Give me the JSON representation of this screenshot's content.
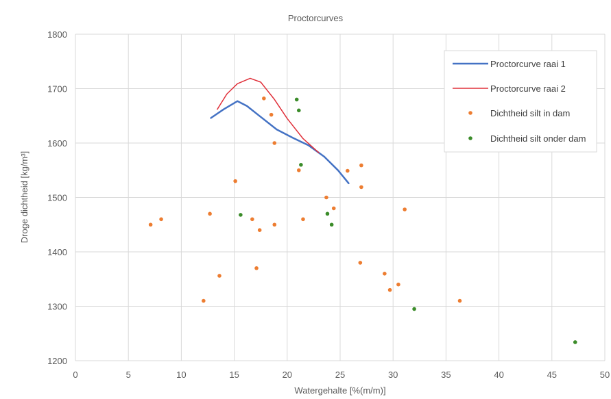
{
  "chart_data": {
    "type": "scatter",
    "title": "Proctorcurves",
    "xlabel": "Watergehalte [%(m/m)]",
    "ylabel": "Droge dichtheid  [kg/m³]",
    "xlim": [
      0,
      50
    ],
    "ylim": [
      1200,
      1800
    ],
    "xticks": [
      0,
      5,
      10,
      15,
      20,
      25,
      30,
      35,
      40,
      45,
      50
    ],
    "yticks": [
      1200,
      1300,
      1400,
      1500,
      1600,
      1700,
      1800
    ],
    "grid": true,
    "legend_position": "top-right",
    "series": [
      {
        "name": "Proctorcurve raai 1",
        "kind": "line",
        "color": "#4472C4",
        "points": [
          [
            12.8,
            1646
          ],
          [
            14.0,
            1662
          ],
          [
            15.3,
            1677
          ],
          [
            16.2,
            1668
          ],
          [
            17.5,
            1648
          ],
          [
            19.0,
            1625
          ],
          [
            20.5,
            1610
          ],
          [
            22.0,
            1596
          ],
          [
            23.5,
            1575
          ],
          [
            24.8,
            1550
          ],
          [
            25.8,
            1526
          ]
        ]
      },
      {
        "name": "Proctorcurve raai 2",
        "kind": "line",
        "color": "#E0303A",
        "points": [
          [
            13.4,
            1662
          ],
          [
            14.3,
            1690
          ],
          [
            15.3,
            1709
          ],
          [
            16.5,
            1719
          ],
          [
            17.5,
            1712
          ],
          [
            18.8,
            1680
          ],
          [
            20.0,
            1645
          ],
          [
            21.5,
            1608
          ],
          [
            23.0,
            1582
          ]
        ]
      },
      {
        "name": "Dichtheid silt in dam",
        "kind": "scatter",
        "color": "#ED7D31",
        "points": [
          [
            7.1,
            1450
          ],
          [
            8.1,
            1460
          ],
          [
            12.1,
            1310
          ],
          [
            12.7,
            1470
          ],
          [
            13.6,
            1356
          ],
          [
            15.1,
            1530
          ],
          [
            16.7,
            1460
          ],
          [
            17.1,
            1370
          ],
          [
            17.4,
            1440
          ],
          [
            17.8,
            1682
          ],
          [
            18.5,
            1652
          ],
          [
            18.8,
            1600
          ],
          [
            18.8,
            1450
          ],
          [
            21.1,
            1550
          ],
          [
            21.5,
            1460
          ],
          [
            23.7,
            1500
          ],
          [
            24.4,
            1480
          ],
          [
            25.7,
            1549
          ],
          [
            26.9,
            1380
          ],
          [
            27.0,
            1519
          ],
          [
            27.0,
            1559
          ],
          [
            29.2,
            1360
          ],
          [
            29.7,
            1330
          ],
          [
            30.5,
            1340
          ],
          [
            31.1,
            1478
          ],
          [
            36.3,
            1310
          ]
        ]
      },
      {
        "name": "Dichtheid silt onder dam",
        "kind": "scatter",
        "color": "#3B8C2A",
        "points": [
          [
            15.6,
            1468
          ],
          [
            20.9,
            1680
          ],
          [
            21.1,
            1660
          ],
          [
            21.3,
            1560
          ],
          [
            23.8,
            1470
          ],
          [
            24.2,
            1450
          ],
          [
            32.0,
            1295
          ],
          [
            47.2,
            1234
          ]
        ]
      }
    ]
  }
}
